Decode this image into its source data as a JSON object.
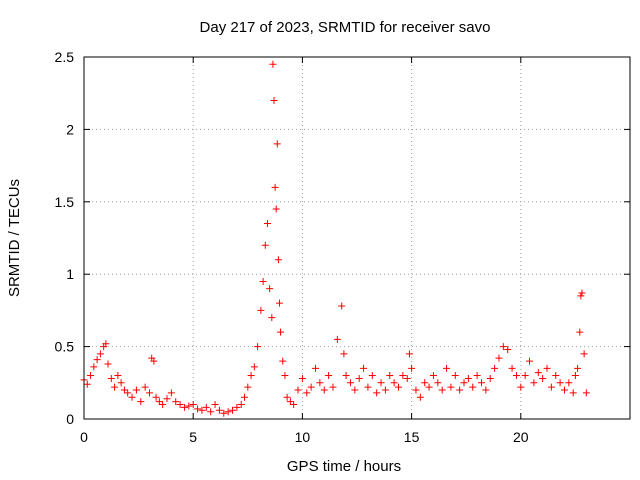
{
  "chart_data": {
    "type": "scatter",
    "title": "Day 217 of 2023, SRMTID for receiver savo",
    "xlabel": "GPS time / hours",
    "ylabel": "SRMTID / TECUs",
    "xlim": [
      0,
      25
    ],
    "ylim": [
      0,
      2.5
    ],
    "xticks": [
      0,
      5,
      10,
      15,
      20
    ],
    "xtick_labels": [
      "0",
      "5",
      "10",
      "15",
      "20"
    ],
    "yticks": [
      0,
      0.5,
      1,
      1.5,
      2,
      2.5
    ],
    "ytick_labels": [
      "0",
      "0.5",
      "1",
      "1.5",
      "2",
      "2.5"
    ],
    "grid": true,
    "marker": "+",
    "color": "#ff0000",
    "series": [
      {
        "name": "SRMTID",
        "x": [
          0.0,
          0.15,
          0.3,
          0.45,
          0.6,
          0.75,
          0.9,
          1.0,
          1.1,
          1.25,
          1.4,
          1.55,
          1.7,
          1.85,
          2.0,
          2.2,
          2.4,
          2.6,
          2.8,
          3.0,
          3.1,
          3.2,
          3.3,
          3.45,
          3.6,
          3.8,
          4.0,
          4.2,
          4.4,
          4.6,
          4.8,
          5.0,
          5.2,
          5.4,
          5.6,
          5.8,
          6.0,
          6.2,
          6.4,
          6.6,
          6.8,
          7.0,
          7.2,
          7.35,
          7.5,
          7.65,
          7.8,
          7.95,
          8.1,
          8.2,
          8.3,
          8.4,
          8.5,
          8.6,
          8.65,
          8.7,
          8.75,
          8.8,
          8.85,
          8.9,
          8.95,
          9.0,
          9.1,
          9.2,
          9.3,
          9.45,
          9.6,
          9.8,
          10.0,
          10.2,
          10.4,
          10.6,
          10.8,
          11.0,
          11.2,
          11.4,
          11.6,
          11.8,
          11.9,
          12.0,
          12.2,
          12.4,
          12.6,
          12.8,
          13.0,
          13.2,
          13.4,
          13.6,
          13.8,
          14.0,
          14.2,
          14.4,
          14.6,
          14.8,
          14.9,
          15.0,
          15.2,
          15.4,
          15.6,
          15.8,
          16.0,
          16.2,
          16.4,
          16.6,
          16.8,
          17.0,
          17.2,
          17.4,
          17.6,
          17.8,
          18.0,
          18.2,
          18.4,
          18.6,
          18.8,
          19.0,
          19.2,
          19.4,
          19.6,
          19.8,
          20.0,
          20.2,
          20.4,
          20.6,
          20.8,
          21.0,
          21.2,
          21.4,
          21.6,
          21.8,
          22.0,
          22.2,
          22.4,
          22.5,
          22.6,
          22.7,
          22.75,
          22.8,
          22.9,
          23.0
        ],
        "y": [
          0.27,
          0.24,
          0.3,
          0.36,
          0.41,
          0.45,
          0.5,
          0.52,
          0.38,
          0.28,
          0.22,
          0.3,
          0.25,
          0.2,
          0.18,
          0.15,
          0.2,
          0.12,
          0.22,
          0.18,
          0.42,
          0.4,
          0.15,
          0.12,
          0.1,
          0.14,
          0.18,
          0.12,
          0.1,
          0.08,
          0.09,
          0.1,
          0.07,
          0.06,
          0.08,
          0.05,
          0.1,
          0.06,
          0.04,
          0.05,
          0.06,
          0.08,
          0.1,
          0.15,
          0.22,
          0.3,
          0.36,
          0.5,
          0.75,
          0.95,
          1.2,
          1.35,
          0.9,
          0.7,
          2.45,
          2.2,
          1.6,
          1.45,
          1.9,
          1.1,
          0.8,
          0.6,
          0.4,
          0.3,
          0.15,
          0.12,
          0.1,
          0.2,
          0.28,
          0.18,
          0.22,
          0.35,
          0.25,
          0.2,
          0.3,
          0.22,
          0.55,
          0.78,
          0.45,
          0.3,
          0.25,
          0.2,
          0.28,
          0.35,
          0.22,
          0.3,
          0.18,
          0.25,
          0.2,
          0.3,
          0.25,
          0.22,
          0.3,
          0.28,
          0.45,
          0.35,
          0.2,
          0.15,
          0.25,
          0.22,
          0.3,
          0.25,
          0.2,
          0.35,
          0.22,
          0.3,
          0.2,
          0.25,
          0.28,
          0.22,
          0.3,
          0.25,
          0.2,
          0.28,
          0.35,
          0.42,
          0.5,
          0.48,
          0.35,
          0.3,
          0.22,
          0.3,
          0.4,
          0.25,
          0.32,
          0.28,
          0.35,
          0.22,
          0.3,
          0.25,
          0.2,
          0.25,
          0.18,
          0.3,
          0.35,
          0.6,
          0.85,
          0.87,
          0.45,
          0.18
        ]
      }
    ]
  }
}
